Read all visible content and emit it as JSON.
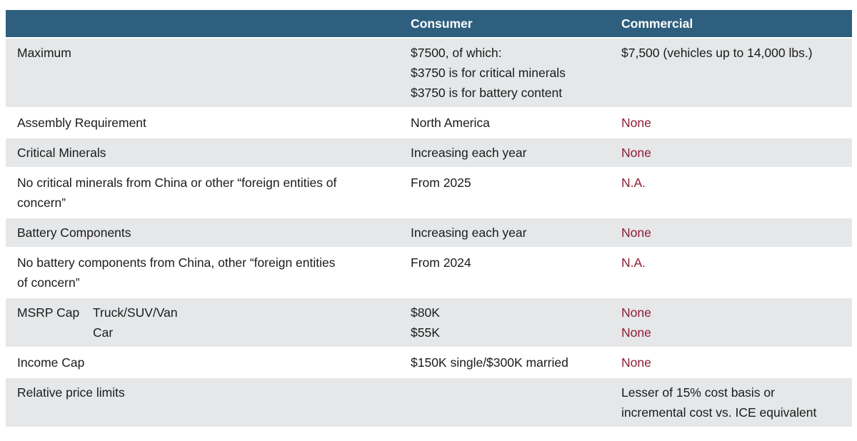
{
  "colors": {
    "header_bg": "#2f5f7e",
    "header_text": "#ffffff",
    "row_alt_bg": "#e5e7e9",
    "row_bg": "#ffffff",
    "accent_red": "#8e1c33",
    "body_text": "#1b1b1b"
  },
  "header": {
    "consumer": "Consumer",
    "commercial": "Commercial"
  },
  "rows": [
    {
      "label_lines": [
        "Maximum"
      ],
      "sublabel_lines": [],
      "consumer_lines": [
        "$7500, of which:",
        "$3750 is for critical minerals",
        "$3750 is for battery content"
      ],
      "consumer_red": false,
      "commercial_lines": [
        "$7,500 (vehicles up to 14,000 lbs.)"
      ],
      "commercial_red": false,
      "shaded": true
    },
    {
      "label_lines": [
        "Assembly Requirement"
      ],
      "sublabel_lines": [],
      "consumer_lines": [
        "North America"
      ],
      "consumer_red": false,
      "commercial_lines": [
        "None"
      ],
      "commercial_red": true,
      "shaded": false
    },
    {
      "label_lines": [
        "Critical Minerals"
      ],
      "sublabel_lines": [],
      "consumer_lines": [
        "Increasing each year"
      ],
      "consumer_red": false,
      "commercial_lines": [
        "None"
      ],
      "commercial_red": true,
      "shaded": true
    },
    {
      "label_lines": [
        "No critical minerals from China or other “foreign entities of",
        "concern”"
      ],
      "sublabel_lines": [],
      "consumer_lines": [
        "From 2025"
      ],
      "consumer_red": false,
      "commercial_lines": [
        "N.A."
      ],
      "commercial_red": true,
      "shaded": false
    },
    {
      "label_lines": [
        "Battery Components"
      ],
      "sublabel_lines": [],
      "consumer_lines": [
        "Increasing each year"
      ],
      "consumer_red": false,
      "commercial_lines": [
        "None"
      ],
      "commercial_red": true,
      "shaded": true
    },
    {
      "label_lines": [
        "No battery components from China, other “foreign entities",
        "of concern”"
      ],
      "sublabel_lines": [],
      "consumer_lines": [
        "From 2024"
      ],
      "consumer_red": false,
      "commercial_lines": [
        "N.A."
      ],
      "commercial_red": true,
      "shaded": false
    },
    {
      "label_lines": [
        "MSRP Cap"
      ],
      "sublabel_lines": [
        "Truck/SUV/Van",
        "Car"
      ],
      "consumer_lines": [
        "$80K",
        "$55K"
      ],
      "consumer_red": false,
      "commercial_lines": [
        "None",
        "None"
      ],
      "commercial_red": true,
      "shaded": true
    },
    {
      "label_lines": [
        "Income Cap"
      ],
      "sublabel_lines": [],
      "consumer_lines": [
        "$150K single/$300K married"
      ],
      "consumer_red": false,
      "commercial_lines": [
        "None"
      ],
      "commercial_red": true,
      "shaded": false
    },
    {
      "label_lines": [
        "Relative price limits"
      ],
      "sublabel_lines": [],
      "consumer_lines": [],
      "consumer_red": false,
      "commercial_lines": [
        "Lesser of 15% cost basis or",
        "incremental cost vs. ICE equivalent"
      ],
      "commercial_red": false,
      "shaded": true
    }
  ]
}
